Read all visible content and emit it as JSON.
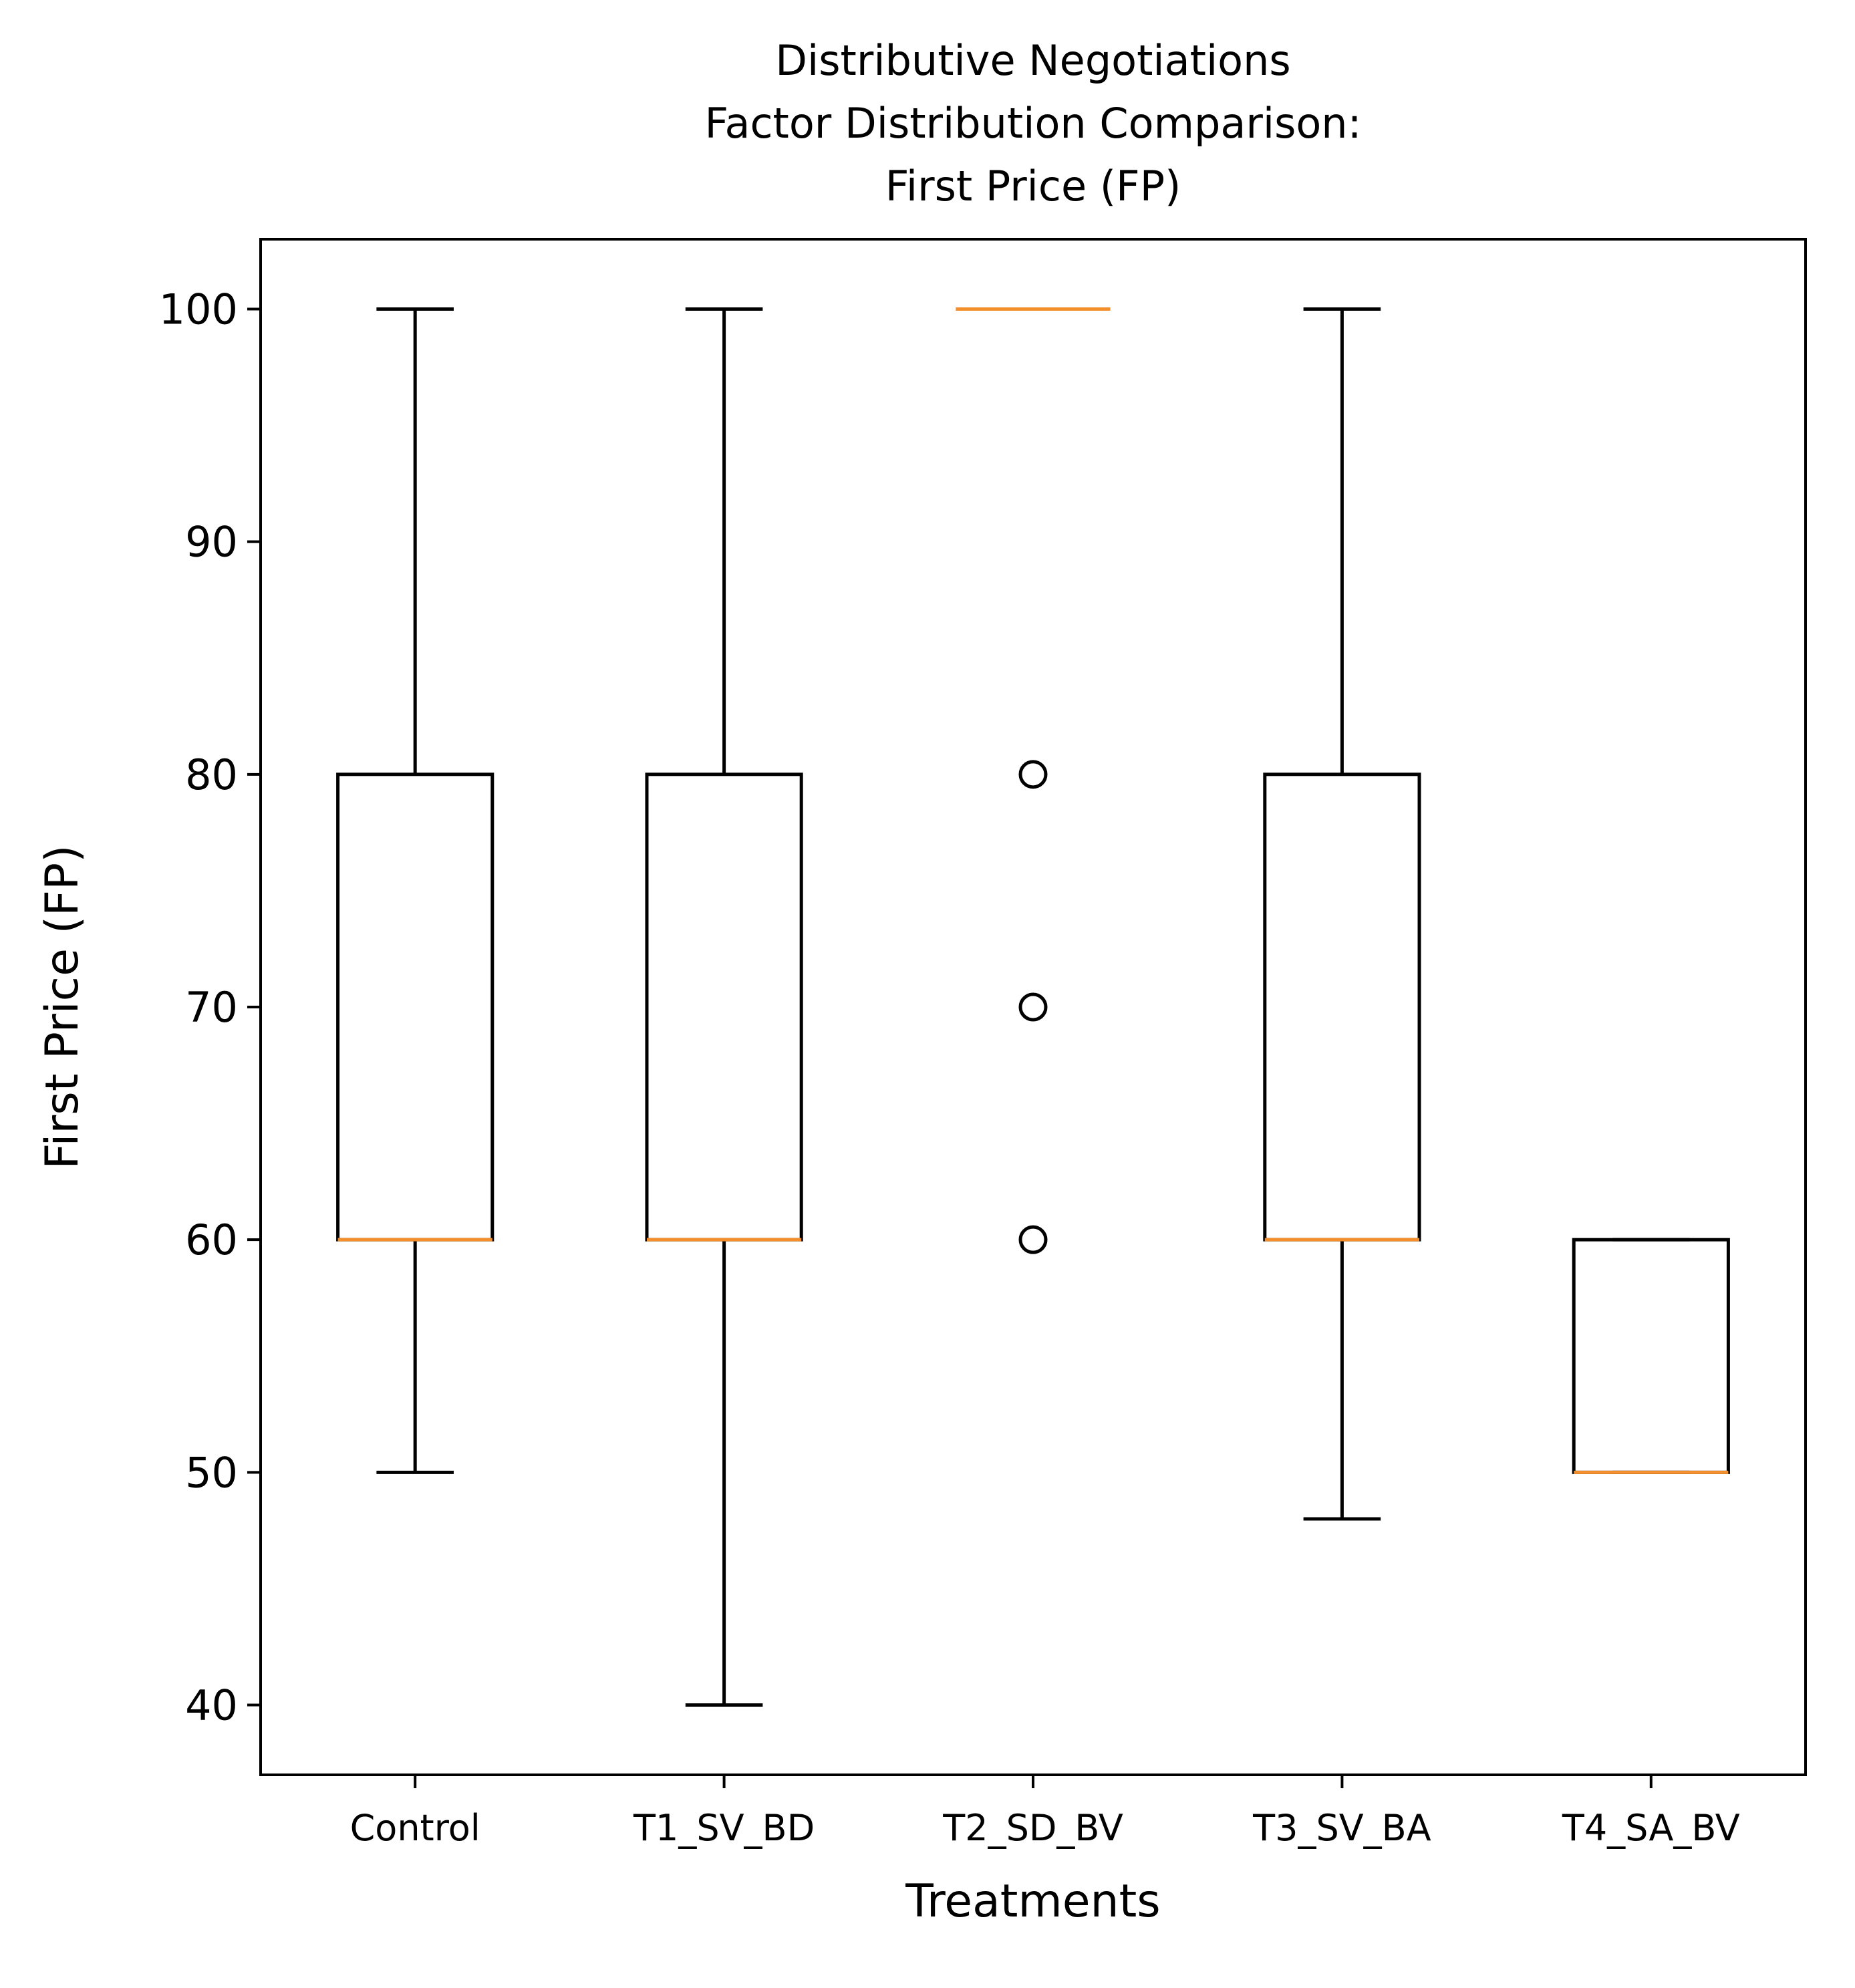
{
  "chart_data": {
    "type": "box",
    "title_lines": [
      "Distributive Negotiations",
      "Factor Distribution Comparison:",
      "First Price (FP)"
    ],
    "xlabel": "Treatments",
    "ylabel": "First Price (FP)",
    "ylim": [
      37,
      103
    ],
    "yticks": [
      40,
      50,
      60,
      70,
      80,
      90,
      100
    ],
    "grid": false,
    "median_color": "#f28e2b",
    "box_color": "#000000",
    "categories": [
      "Control",
      "T1_SV_BD",
      "T2_SD_BV",
      "T3_SV_BA",
      "T4_SA_BV"
    ],
    "boxes": [
      {
        "label": "Control",
        "whisker_low": 50,
        "q1": 60,
        "median": 60,
        "q3": 80,
        "whisker_high": 100,
        "outliers": []
      },
      {
        "label": "T1_SV_BD",
        "whisker_low": 40,
        "q1": 60,
        "median": 60,
        "q3": 80,
        "whisker_high": 100,
        "outliers": []
      },
      {
        "label": "T2_SD_BV",
        "whisker_low": 100,
        "q1": 100,
        "median": 100,
        "q3": 100,
        "whisker_high": 100,
        "outliers": [
          60,
          70,
          80
        ]
      },
      {
        "label": "T3_SV_BA",
        "whisker_low": 48,
        "q1": 60,
        "median": 60,
        "q3": 80,
        "whisker_high": 100,
        "outliers": []
      },
      {
        "label": "T4_SA_BV",
        "whisker_low": 50,
        "q1": 50,
        "median": 50,
        "q3": 60,
        "whisker_high": 60,
        "outliers": []
      }
    ]
  }
}
